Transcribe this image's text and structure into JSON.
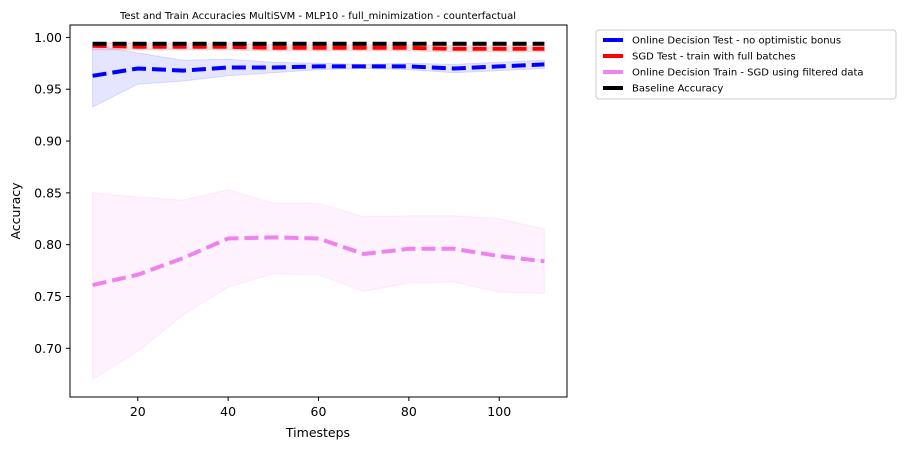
{
  "chart_data": {
    "type": "line",
    "title": "Test and Train Accuracies MultiSVM - MLP10 - full_minimization - counterfactual",
    "xlabel": "Timesteps",
    "ylabel": "Accuracy",
    "xlim": [
      5,
      115
    ],
    "ylim": [
      0.653,
      1.012
    ],
    "xticks": [
      20,
      40,
      60,
      80,
      100
    ],
    "yticks": [
      0.7,
      0.75,
      0.8,
      0.85,
      0.9,
      0.95,
      1.0
    ],
    "xtick_labels": [
      "20",
      "40",
      "60",
      "80",
      "100"
    ],
    "ytick_labels": [
      "0.70",
      "0.75",
      "0.80",
      "0.85",
      "0.90",
      "0.95",
      "1.00"
    ],
    "grid": false,
    "legend_position": "outside-top-right",
    "x": [
      10,
      20,
      30,
      40,
      50,
      60,
      70,
      80,
      90,
      100,
      110
    ],
    "series": [
      {
        "name": "Online Decision Test - no optimistic bonus",
        "color": "#0000ff",
        "band_color": "#0000ff",
        "values": [
          0.963,
          0.97,
          0.968,
          0.971,
          0.971,
          0.972,
          0.972,
          0.972,
          0.97,
          0.972,
          0.974
        ],
        "lower": [
          0.933,
          0.955,
          0.958,
          0.963,
          0.966,
          0.969,
          0.97,
          0.969,
          0.966,
          0.968,
          0.97
        ],
        "upper": [
          0.993,
          0.985,
          0.978,
          0.979,
          0.976,
          0.975,
          0.974,
          0.975,
          0.974,
          0.976,
          0.978
        ]
      },
      {
        "name": "SGD Test - train with full batches",
        "color": "#ff0000",
        "band_color": "#ff0000",
        "values": [
          0.992,
          0.991,
          0.991,
          0.991,
          0.99,
          0.99,
          0.99,
          0.99,
          0.989,
          0.989,
          0.989
        ],
        "lower": [
          0.988,
          0.988,
          0.988,
          0.988,
          0.987,
          0.987,
          0.987,
          0.987,
          0.986,
          0.986,
          0.986
        ],
        "upper": [
          0.995,
          0.994,
          0.994,
          0.994,
          0.993,
          0.993,
          0.993,
          0.993,
          0.992,
          0.992,
          0.992
        ]
      },
      {
        "name": "Online Decision Train - SGD using filtered data",
        "color": "#ee82ee",
        "band_color": "#ee82ee",
        "values": [
          0.761,
          0.771,
          0.787,
          0.806,
          0.807,
          0.806,
          0.791,
          0.796,
          0.796,
          0.789,
          0.784
        ],
        "lower": [
          0.67,
          0.697,
          0.732,
          0.759,
          0.772,
          0.771,
          0.755,
          0.763,
          0.764,
          0.754,
          0.753
        ],
        "upper": [
          0.85,
          0.846,
          0.843,
          0.853,
          0.84,
          0.84,
          0.827,
          0.828,
          0.828,
          0.825,
          0.815
        ]
      },
      {
        "name": "Baseline Accuracy",
        "color": "#000000",
        "values": [
          0.994,
          0.994,
          0.994,
          0.994,
          0.994,
          0.994,
          0.994,
          0.994,
          0.994,
          0.994,
          0.994
        ]
      }
    ]
  }
}
